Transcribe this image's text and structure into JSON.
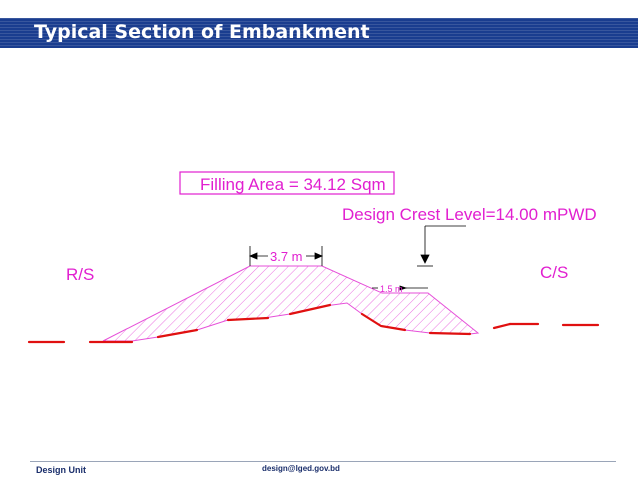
{
  "slide": {
    "title": "Typical Section of Embankment"
  },
  "diagram": {
    "filling_area_label": "Filling Area = 34.12 Sqm",
    "design_crest_label": "Design Crest Level=14.00 mPWD",
    "crest_width_label": "3.7 m",
    "berm_width_label": "1.5 m",
    "left_side_label": "R/S",
    "right_side_label": "C/S",
    "colors": {
      "label": "#e11fd0",
      "ground_line": "#e01010",
      "hatch": "#e64fd9",
      "annotation": "#000000"
    }
  },
  "footer": {
    "left_text": "Design Unit",
    "center_text": "design@lged.gov.bd"
  }
}
